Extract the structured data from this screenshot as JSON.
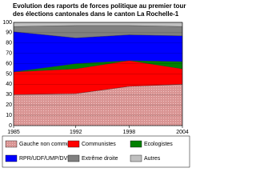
{
  "chart_data": {
    "type": "stacked-area",
    "title": "Evolution des raports de forces politique au premier tour des élections cantonales dans le canton La Rochelle-1",
    "x": [
      1985,
      1992,
      1998,
      2004
    ],
    "xlim": [
      1985,
      2004
    ],
    "xticks": [
      1985,
      1992,
      1998,
      2004
    ],
    "ylim": [
      0,
      100
    ],
    "yticks": [
      0,
      10,
      20,
      30,
      40,
      50,
      60,
      70,
      80,
      90,
      100
    ],
    "grid": true,
    "series": [
      {
        "name": "Gauche non communis",
        "color": "#d99594",
        "values": [
          30,
          31,
          38,
          40
        ]
      },
      {
        "name": "Communistes",
        "color": "#ff0000",
        "values": [
          22,
          24,
          25,
          15
        ]
      },
      {
        "name": "Ecologistes",
        "color": "#008000",
        "values": [
          0,
          5,
          0,
          7
        ]
      },
      {
        "name": "RPR/UDF/UMP/DVD",
        "color": "#0000ff",
        "values": [
          39,
          25,
          25,
          25
        ]
      },
      {
        "name": "Extrême droite",
        "color": "#808080",
        "values": [
          5,
          12,
          9,
          9
        ]
      },
      {
        "name": "Autres",
        "color": "#c0c0c0",
        "values": [
          4,
          3,
          3,
          4
        ]
      }
    ]
  }
}
